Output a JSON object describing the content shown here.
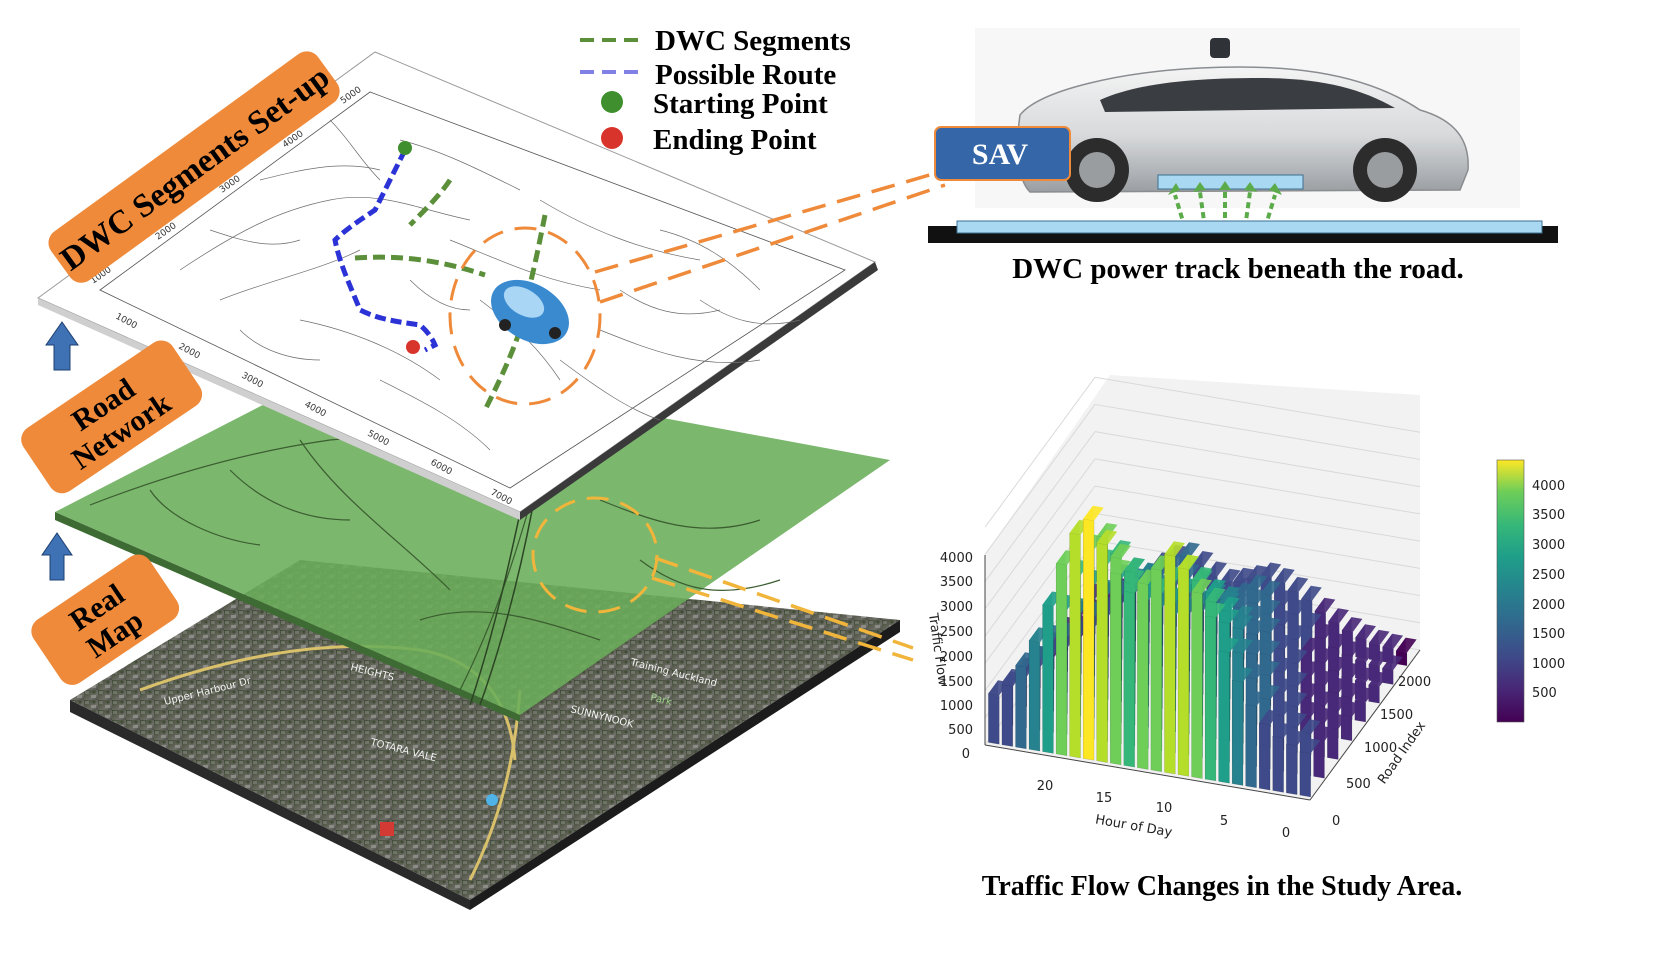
{
  "legend": {
    "dwc_segments": "DWC Segments",
    "possible_route": "Possible Route",
    "starting_point": "Starting Point",
    "ending_point": "Ending Point"
  },
  "layers": {
    "setup": "DWC Segments Set-up",
    "road_line1": "Road",
    "road_line2": "Network",
    "real_line1": "Real",
    "real_line2": "Map"
  },
  "sav_label": "SAV",
  "power_track_caption": "DWC power track beneath the road.",
  "traffic_caption": "Traffic Flow Changes in the Study Area.",
  "setup_plot": {
    "y_ticks": [
      "5000",
      "4000",
      "3000",
      "2000",
      "1000"
    ],
    "x_ticks": [
      "1000",
      "2000",
      "3000",
      "4000",
      "5000",
      "6000",
      "7000"
    ]
  },
  "map_labels": {
    "upper_harbour": "Upper Harbour Dr",
    "heights": "HEIGHTS",
    "totara_vale": "TOTARA VALE",
    "sunnynook": "SUNNYNOOK",
    "training": "Training Auckland",
    "park": "Park"
  },
  "colors": {
    "orange": "#ee8a3a",
    "dwc_green": "#5b8f3a",
    "route_blue": "#2c33d6",
    "start_green": "#3f8f2f",
    "end_red": "#d9342b",
    "sav_blue": "#3567a8",
    "track_light_blue": "#a9d8f2",
    "road_layer_green": "#6aad5a",
    "arrow_blue": "#3e72b5"
  },
  "chart_data": {
    "type": "bar3d",
    "xlabel": "Hour of Day",
    "ylabel": "Road Index",
    "zlabel": "Traffic Flow",
    "x_ticks": [
      "20",
      "15",
      "10",
      "5",
      "0"
    ],
    "y_ticks": [
      "0",
      "500",
      "1000",
      "1500",
      "2000"
    ],
    "z_ticks": [
      "0",
      "500",
      "1000",
      "1500",
      "2000",
      "2500",
      "3000",
      "3500",
      "4000"
    ],
    "zlim": [
      0,
      4500
    ],
    "colorbar_ticks": [
      "500",
      "1000",
      "1500",
      "2000",
      "2500",
      "3000",
      "3500",
      "4000"
    ],
    "colorbar_range": [
      0,
      4500
    ],
    "colormap": "viridis",
    "hourly_peak": [
      800,
      900,
      1000,
      1200,
      1500,
      1900,
      2400,
      3000,
      3400,
      3800,
      4000,
      3700,
      3400,
      3200,
      3500,
      4000,
      4400,
      4100,
      3500,
      2700,
      2000,
      1500,
      1100,
      900
    ]
  }
}
